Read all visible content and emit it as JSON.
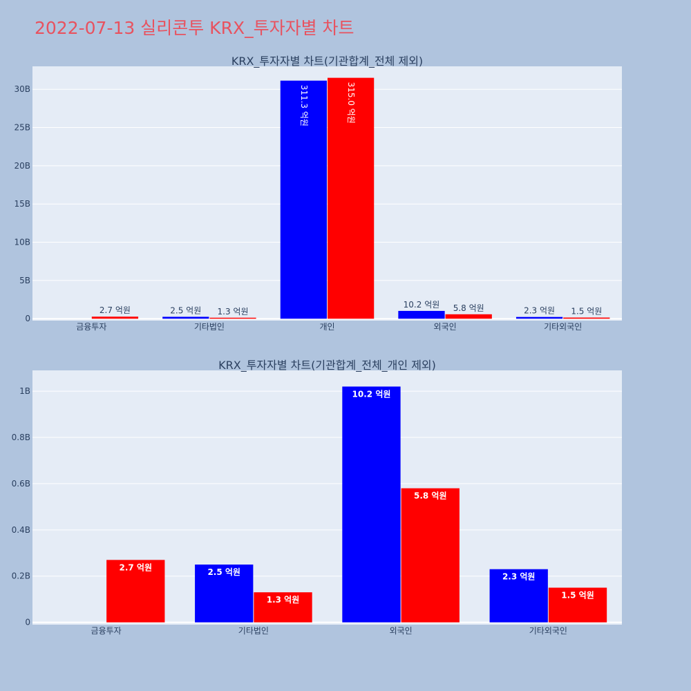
{
  "title": "2022-07-13 실리콘투 KRX_투자자별 차트",
  "colors": {
    "buy": "#0000ff",
    "sell": "#ff0000",
    "plot_bg": "#e5ecf6",
    "page_bg": "#b0c4de",
    "title": "#e8525f"
  },
  "chart_data": [
    {
      "type": "bar",
      "title": "KRX_투자자별 차트(기관합계_전체 제외)",
      "categories": [
        "금융투자",
        "기타법인",
        "개인",
        "외국인",
        "기타외국인"
      ],
      "series": [
        {
          "color": "#0000ff",
          "values": [
            0,
            250000000,
            31130000000,
            1020000000,
            230000000
          ],
          "labels": [
            "",
            "2.5 억원",
            "311.3 억원",
            "10.2 억원",
            "2.3 억원"
          ]
        },
        {
          "color": "#ff0000",
          "values": [
            270000000,
            130000000,
            31500000000,
            580000000,
            150000000
          ],
          "labels": [
            "2.7 억원",
            "1.3 억원",
            "315.0 억원",
            "5.8 억원",
            "1.5 억원"
          ]
        }
      ],
      "ylim": [
        -250000000,
        33000000000
      ],
      "yticks": [
        0,
        5000000000,
        10000000000,
        15000000000,
        20000000000,
        25000000000,
        30000000000
      ],
      "ytick_labels": [
        "0",
        "5B",
        "10B",
        "15B",
        "20B",
        "25B",
        "30B"
      ],
      "grid": true
    },
    {
      "type": "bar",
      "title": "KRX_투자자별 차트(기관합계_전체_개인 제외)",
      "categories": [
        "금융투자",
        "기타법인",
        "외국인",
        "기타외국인"
      ],
      "series": [
        {
          "color": "#0000ff",
          "values": [
            0,
            250000000,
            1020000000,
            230000000
          ],
          "labels": [
            "",
            "2.5 억원",
            "10.2 억원",
            "2.3 억원"
          ]
        },
        {
          "color": "#ff0000",
          "values": [
            270000000,
            130000000,
            580000000,
            150000000
          ],
          "labels": [
            "2.7 억원",
            "1.3 억원",
            "5.8 억원",
            "1.5 억원"
          ]
        }
      ],
      "ylim": [
        -10000000,
        1090000000
      ],
      "yticks": [
        0,
        200000000,
        400000000,
        600000000,
        800000000,
        1000000000
      ],
      "ytick_labels": [
        "0",
        "0.2B",
        "0.4B",
        "0.6B",
        "0.8B",
        "1B"
      ],
      "grid": true
    }
  ]
}
